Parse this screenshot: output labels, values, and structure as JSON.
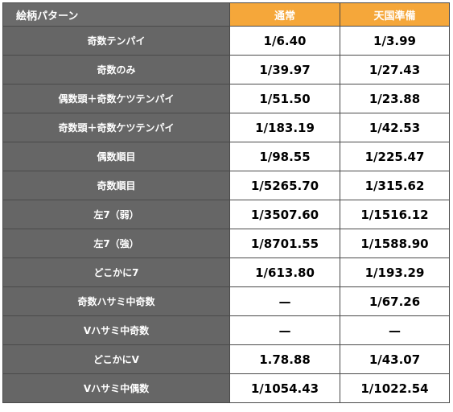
{
  "header": {
    "pattern_label": "絵柄パターン",
    "col_normal": "通常",
    "col_heaven": "天国準備"
  },
  "rows": [
    {
      "pattern": "奇数テンパイ",
      "normal": "1/6.40",
      "heaven": "1/3.99"
    },
    {
      "pattern": "奇数のみ",
      "normal": "1/39.97",
      "heaven": "1/27.43"
    },
    {
      "pattern": "偶数頭＋奇数ケツテンパイ",
      "normal": "1/51.50",
      "heaven": "1/23.88"
    },
    {
      "pattern": "奇数頭＋奇数ケツテンパイ",
      "normal": "1/183.19",
      "heaven": "1/42.53"
    },
    {
      "pattern": "偶数順目",
      "normal": "1/98.55",
      "heaven": "1/225.47"
    },
    {
      "pattern": "奇数順目",
      "normal": "1/5265.70",
      "heaven": "1/315.62"
    },
    {
      "pattern": "左7（弱）",
      "normal": "1/3507.60",
      "heaven": "1/1516.12"
    },
    {
      "pattern": "左7（強）",
      "normal": "1/8701.55",
      "heaven": "1/1588.90"
    },
    {
      "pattern": "どこかに7",
      "normal": "1/613.80",
      "heaven": "1/193.29"
    },
    {
      "pattern": "奇数ハサミ中奇数",
      "normal": "—",
      "heaven": "1/67.26"
    },
    {
      "pattern": "Vハサミ中奇数",
      "normal": "—",
      "heaven": "—"
    },
    {
      "pattern": "どこかにV",
      "normal": "1.78.88",
      "heaven": "1/43.07"
    },
    {
      "pattern": "Vハサミ中偶数",
      "normal": "1/1054.43",
      "heaven": "1/1022.54"
    }
  ],
  "colors": {
    "header_accent": "#f5a73a",
    "header_gray": "#6b6b6b",
    "label_cell": "#666666",
    "border": "#4a4a4a"
  }
}
